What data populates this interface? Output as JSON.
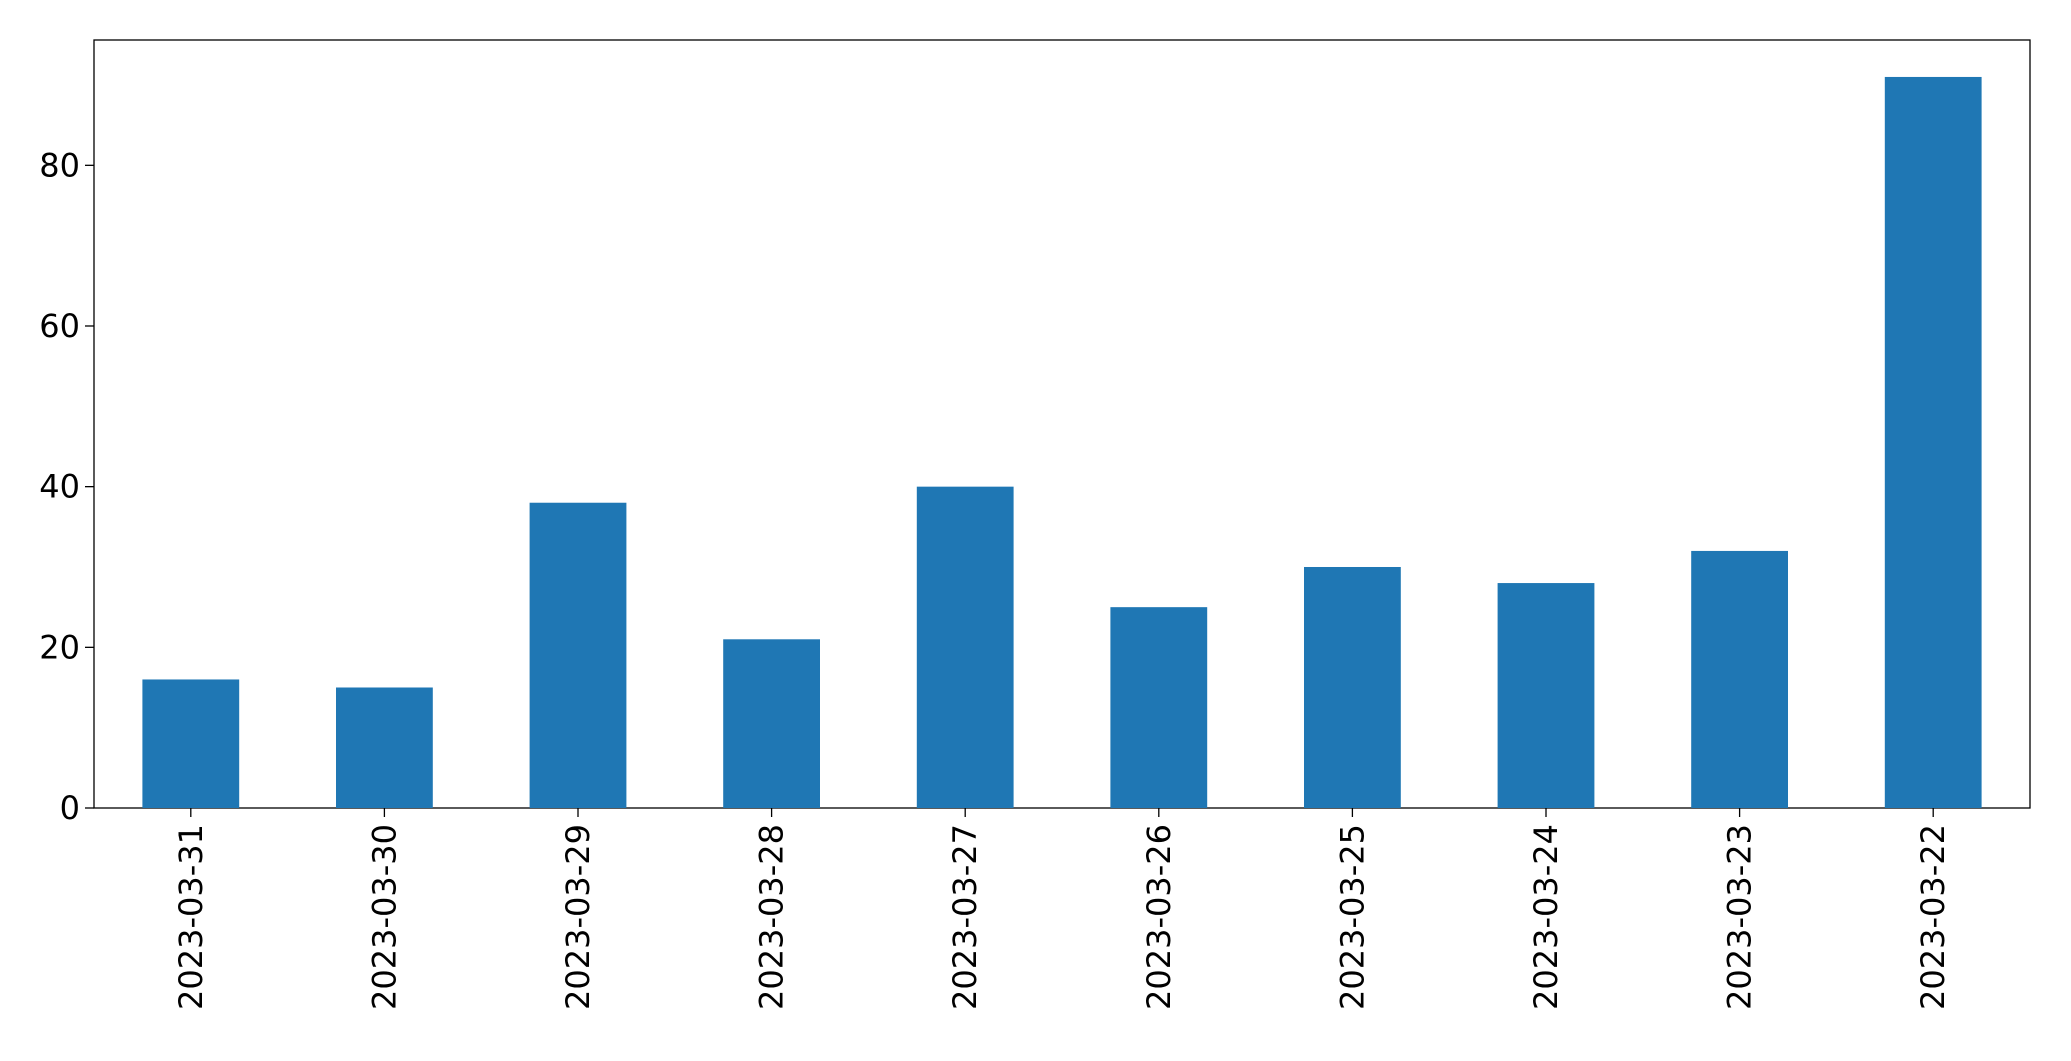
{
  "chart_data": {
    "type": "bar",
    "categories": [
      "2023-03-31",
      "2023-03-30",
      "2023-03-29",
      "2023-03-28",
      "2023-03-27",
      "2023-03-26",
      "2023-03-25",
      "2023-03-24",
      "2023-03-23",
      "2023-03-22"
    ],
    "values": [
      16,
      15,
      38,
      21,
      40,
      25,
      30,
      28,
      32,
      91
    ],
    "color": "#1f77b4",
    "ylim": [
      0,
      95.6
    ],
    "yticks": [
      0,
      20,
      40,
      60,
      80
    ],
    "grid": false
  }
}
